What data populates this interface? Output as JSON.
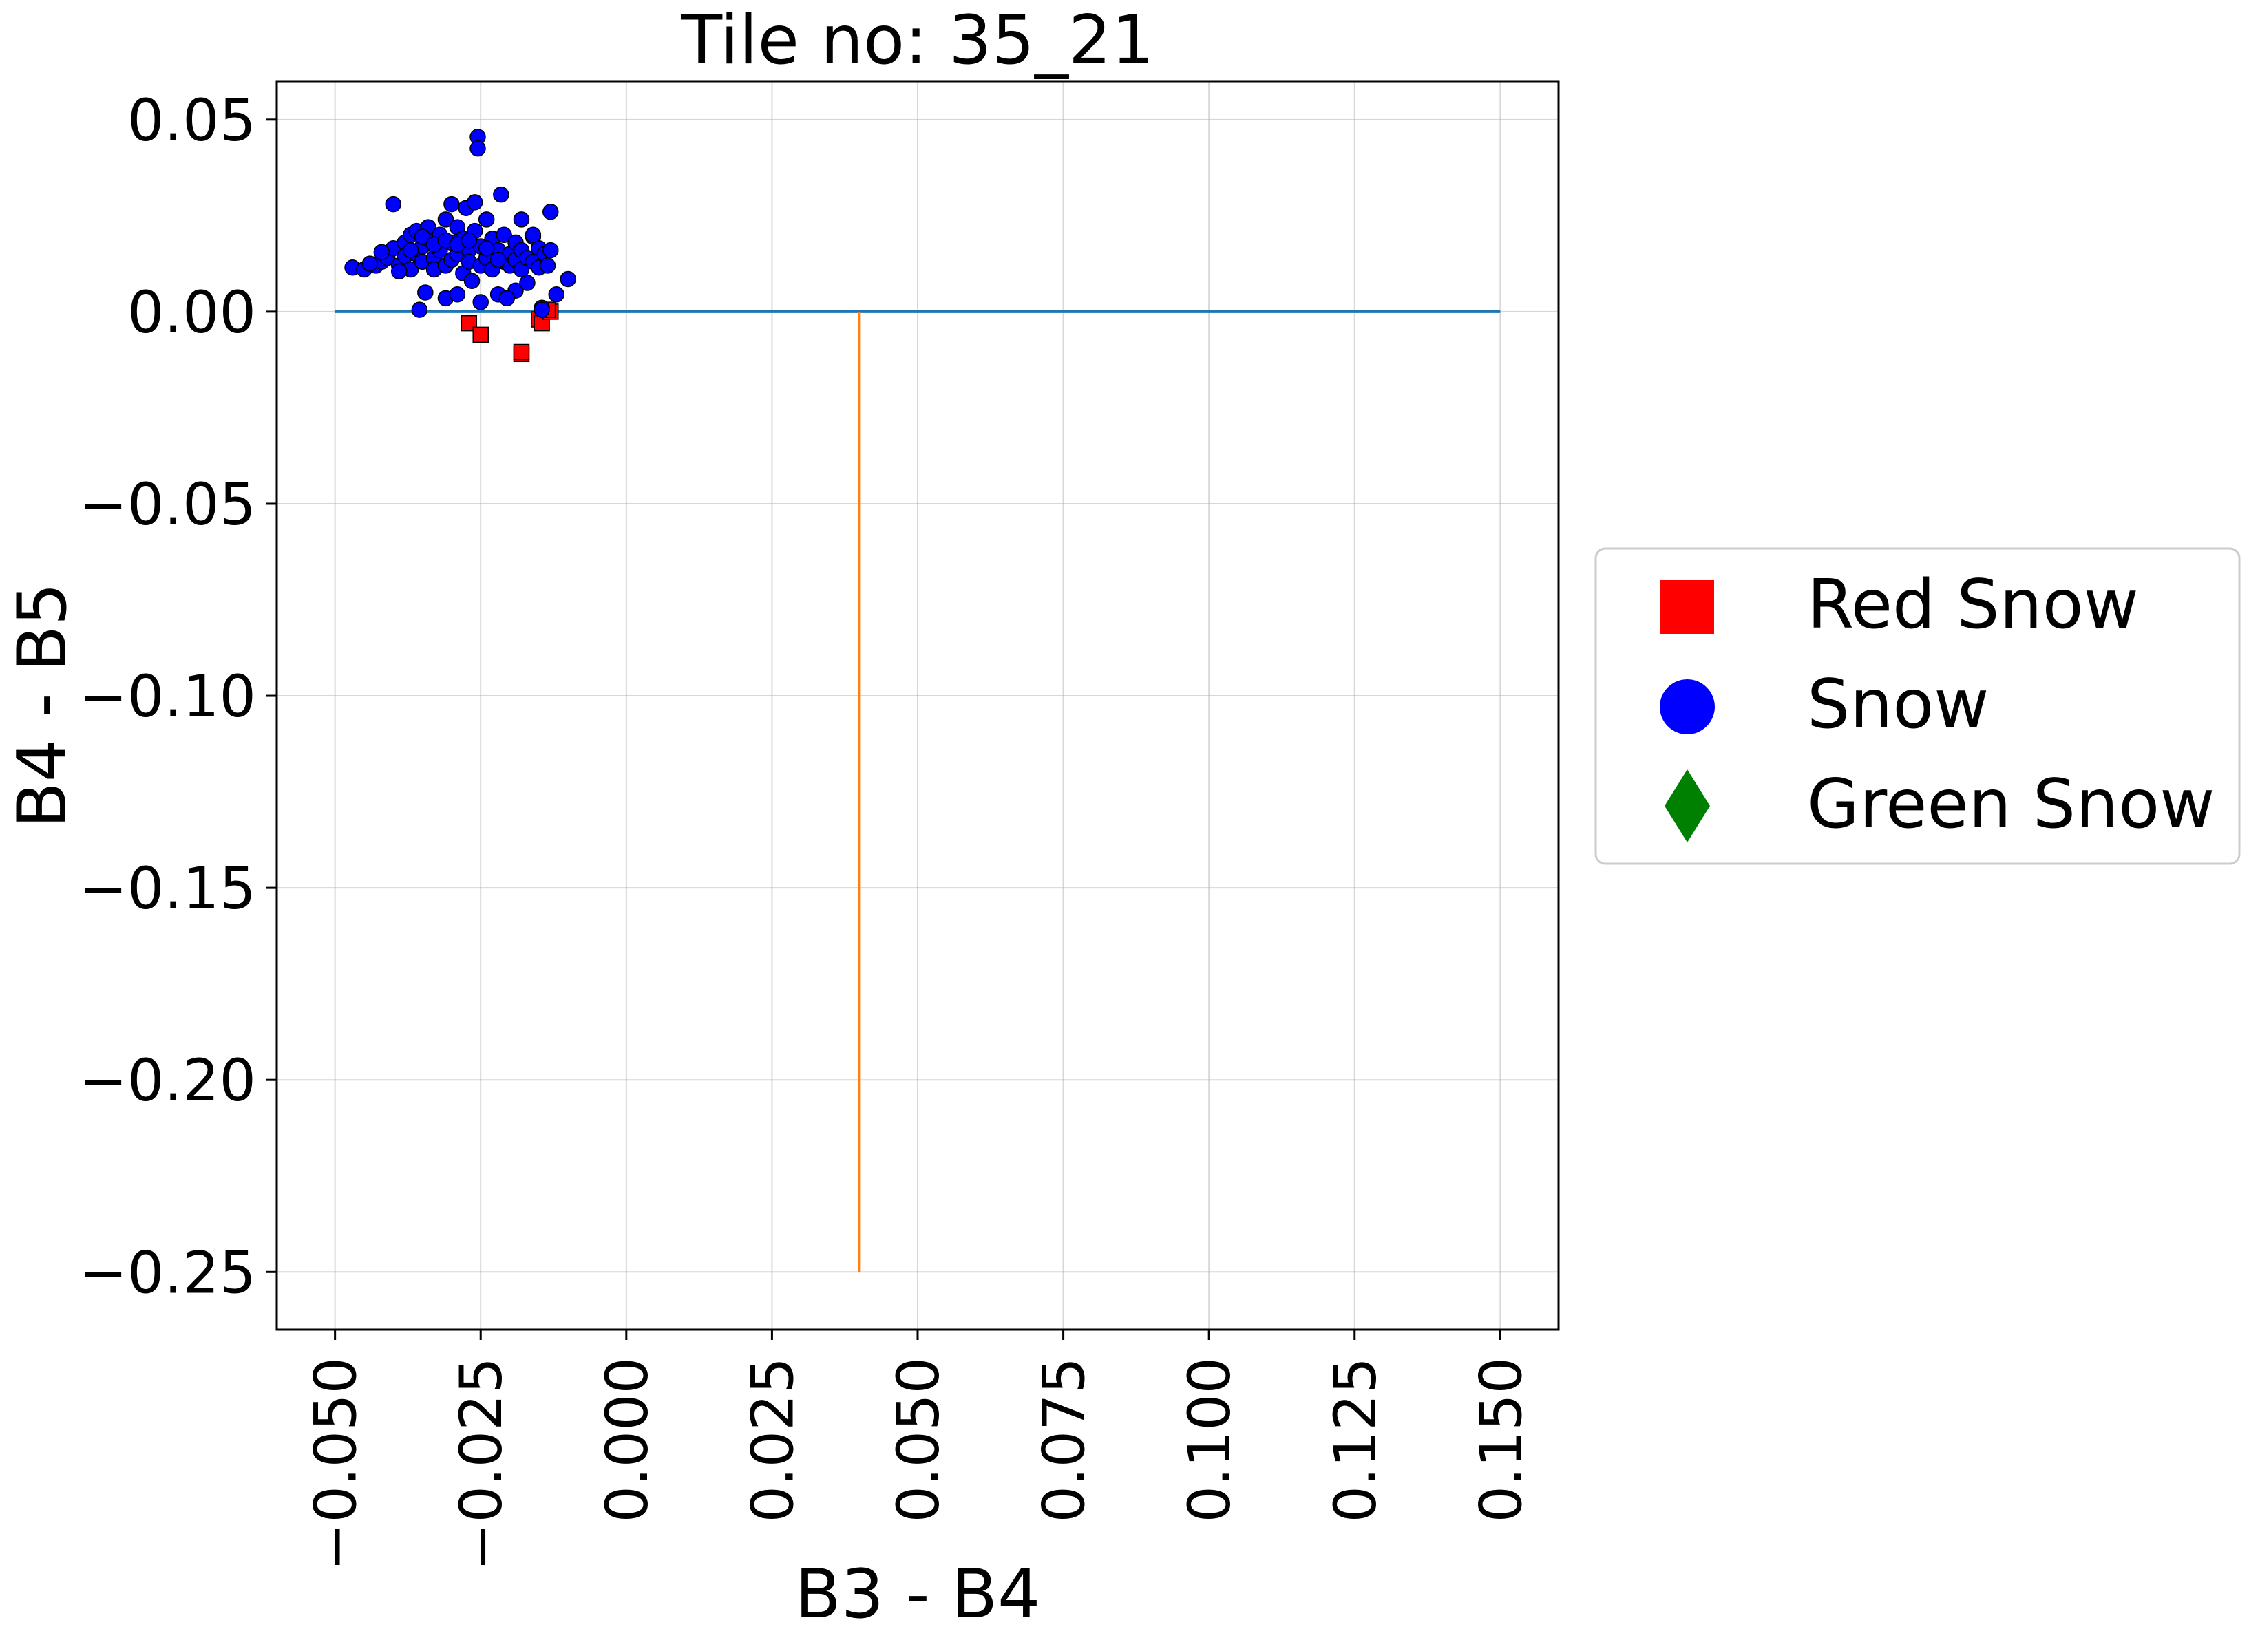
{
  "chart_data": {
    "type": "scatter",
    "title": "Tile no: 35_21",
    "xlabel": "B3 - B4",
    "ylabel": "B4 - B5",
    "xlim": [
      -0.06,
      0.16
    ],
    "ylim": [
      -0.265,
      0.06
    ],
    "xticks": [
      -0.05,
      -0.025,
      0.0,
      0.025,
      0.05,
      0.075,
      0.1,
      0.125,
      0.15
    ],
    "xtick_labels": [
      "−0.050",
      "−0.025",
      "0.000",
      "0.025",
      "0.050",
      "0.075",
      "0.100",
      "0.125",
      "0.150"
    ],
    "yticks": [
      0.05,
      0.0,
      -0.05,
      -0.1,
      -0.15,
      -0.2,
      -0.25
    ],
    "ytick_labels": [
      "0.05",
      "0.00",
      "−0.05",
      "−0.10",
      "−0.15",
      "−0.20",
      "−0.25"
    ],
    "grid": true,
    "legend_position": "center-right-outside",
    "reference_lines": [
      {
        "name": "horizontal",
        "x": [
          -0.05,
          0.15
        ],
        "y": [
          0.0,
          0.0
        ],
        "color": "#1f77b4"
      },
      {
        "name": "vertical",
        "x": [
          0.04,
          0.04
        ],
        "y": [
          0.0,
          -0.25
        ],
        "color": "#ff7f0e"
      }
    ],
    "series": [
      {
        "name": "Red Snow",
        "marker": "square",
        "color": "#ff0000",
        "points": [
          [
            -0.027,
            -0.003
          ],
          [
            -0.025,
            -0.006
          ],
          [
            -0.018,
            -0.011
          ],
          [
            -0.018,
            -0.0105
          ],
          [
            -0.015,
            -0.002
          ],
          [
            -0.0145,
            -0.003
          ],
          [
            -0.013,
            0.0
          ],
          [
            -0.0135,
            0.0005
          ]
        ]
      },
      {
        "name": "Snow",
        "marker": "circle",
        "color": "#0000ff",
        "points": [
          [
            -0.047,
            0.0115
          ],
          [
            -0.045,
            0.011
          ],
          [
            -0.043,
            0.012
          ],
          [
            -0.042,
            0.013
          ],
          [
            -0.041,
            0.014
          ],
          [
            -0.04,
            0.0165
          ],
          [
            -0.04,
            0.028
          ],
          [
            -0.039,
            0.012
          ],
          [
            -0.038,
            0.018
          ],
          [
            -0.038,
            0.0145
          ],
          [
            -0.037,
            0.02
          ],
          [
            -0.037,
            0.011
          ],
          [
            -0.036,
            0.015
          ],
          [
            -0.036,
            0.021
          ],
          [
            -0.0355,
            0.0005
          ],
          [
            -0.035,
            0.017
          ],
          [
            -0.035,
            0.013
          ],
          [
            -0.034,
            0.019
          ],
          [
            -0.034,
            0.022
          ],
          [
            -0.033,
            0.014
          ],
          [
            -0.033,
            0.011
          ],
          [
            -0.032,
            0.016
          ],
          [
            -0.032,
            0.02
          ],
          [
            -0.031,
            0.024
          ],
          [
            -0.031,
            0.012
          ],
          [
            -0.03,
            0.018
          ],
          [
            -0.03,
            0.0135
          ],
          [
            -0.03,
            0.028
          ],
          [
            -0.029,
            0.022
          ],
          [
            -0.029,
            0.015
          ],
          [
            -0.028,
            0.01
          ],
          [
            -0.028,
            0.019
          ],
          [
            -0.0275,
            0.027
          ],
          [
            -0.027,
            0.016
          ],
          [
            -0.027,
            0.013
          ],
          [
            -0.026,
            0.021
          ],
          [
            -0.026,
            0.0285
          ],
          [
            -0.025,
            0.017
          ],
          [
            -0.025,
            0.012
          ],
          [
            -0.024,
            0.014
          ],
          [
            -0.024,
            0.024
          ],
          [
            -0.023,
            0.019
          ],
          [
            -0.023,
            0.011
          ],
          [
            -0.022,
            0.016
          ],
          [
            -0.022,
            0.0045
          ],
          [
            -0.021,
            0.013
          ],
          [
            -0.021,
            0.02
          ],
          [
            -0.02,
            0.015
          ],
          [
            -0.02,
            0.012
          ],
          [
            -0.019,
            0.018
          ],
          [
            -0.019,
            0.0135
          ],
          [
            -0.018,
            0.011
          ],
          [
            -0.018,
            0.016
          ],
          [
            -0.017,
            0.014
          ],
          [
            -0.016,
            0.013
          ],
          [
            -0.016,
            0.0195
          ],
          [
            -0.015,
            0.0115
          ],
          [
            -0.015,
            0.0165
          ],
          [
            -0.014,
            0.015
          ],
          [
            -0.013,
            0.026
          ],
          [
            -0.013,
            0.016
          ],
          [
            -0.012,
            0.0045
          ],
          [
            -0.01,
            0.0085
          ],
          [
            -0.0255,
            0.0455
          ],
          [
            -0.0255,
            0.0425
          ],
          [
            -0.0215,
            0.0305
          ],
          [
            -0.018,
            0.024
          ],
          [
            -0.016,
            0.02
          ],
          [
            -0.019,
            0.0055
          ],
          [
            -0.0265,
            0.008
          ],
          [
            -0.025,
            0.0025
          ],
          [
            -0.0345,
            0.005
          ],
          [
            -0.031,
            0.0035
          ],
          [
            -0.029,
            0.0045
          ],
          [
            -0.0205,
            0.0035
          ],
          [
            -0.017,
            0.0075
          ],
          [
            -0.0145,
            0.001
          ],
          [
            -0.0145,
            0.0005
          ],
          [
            -0.0135,
            0.012
          ],
          [
            -0.044,
            0.0125
          ],
          [
            -0.042,
            0.0155
          ],
          [
            -0.039,
            0.0105
          ],
          [
            -0.037,
            0.016
          ],
          [
            -0.035,
            0.0195
          ],
          [
            -0.033,
            0.0175
          ],
          [
            -0.031,
            0.0185
          ],
          [
            -0.029,
            0.0175
          ],
          [
            -0.027,
            0.0185
          ],
          [
            -0.024,
            0.0165
          ],
          [
            -0.022,
            0.0135
          ]
        ]
      },
      {
        "name": "Green Snow",
        "marker": "diamond",
        "color": "#008000",
        "points": []
      }
    ]
  }
}
